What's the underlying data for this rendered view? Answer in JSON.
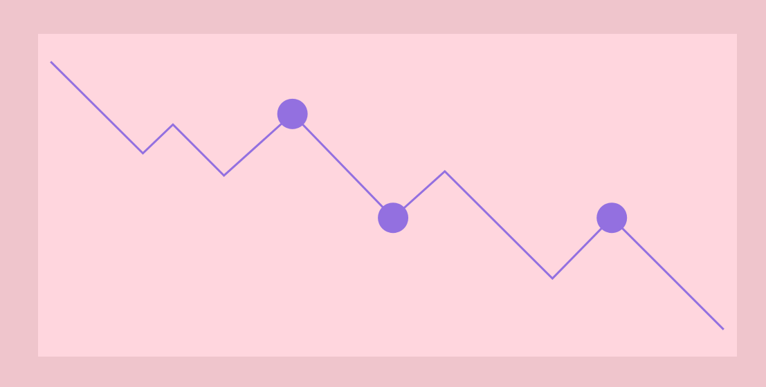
{
  "chart_data": {
    "type": "line",
    "x": [
      1.8,
      15.0,
      19.3,
      26.6,
      36.4,
      50.8,
      58.2,
      73.6,
      82.1,
      98.1
    ],
    "values": [
      91.4,
      63.0,
      71.9,
      56.1,
      75.2,
      43.0,
      57.4,
      24.2,
      43.0,
      8.4
    ],
    "markers": [
      false,
      false,
      false,
      false,
      true,
      true,
      false,
      false,
      true,
      false
    ],
    "color": "#9370e0",
    "xlim": [
      0,
      100
    ],
    "ylim": [
      0,
      100
    ]
  }
}
